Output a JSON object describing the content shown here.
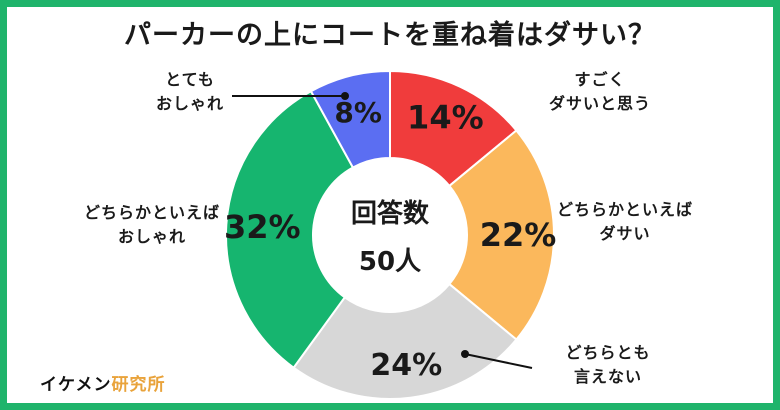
{
  "title": "パーカーの上にコートを重ね着はダサい？",
  "center": {
    "line1": "回答数",
    "line2": "50人"
  },
  "brand": {
    "part1": "イケメン",
    "part2": "研究所",
    "color1": "#111111",
    "color2": "#e9a33b"
  },
  "frame_color": "#1fb46b",
  "chart_data": {
    "type": "pie",
    "donut": true,
    "total_label": "回答数 50人",
    "slices": [
      {
        "label_lines": [
          "すごく",
          "ダサいと思う"
        ],
        "value": 14,
        "display": "14%",
        "color": "#f03c3c"
      },
      {
        "label_lines": [
          "どちらかといえば",
          "ダサい"
        ],
        "value": 22,
        "display": "22%",
        "color": "#fbb85c"
      },
      {
        "label_lines": [
          "どちらとも",
          "言えない"
        ],
        "value": 24,
        "display": "24%",
        "color": "#d7d7d7"
      },
      {
        "label_lines": [
          "どちらかといえば",
          "おしゃれ"
        ],
        "value": 32,
        "display": "32%",
        "color": "#16b56f"
      },
      {
        "label_lines": [
          "とても",
          "おしゃれ"
        ],
        "value": 8,
        "display": "8%",
        "color": "#5b6ef2"
      }
    ]
  }
}
